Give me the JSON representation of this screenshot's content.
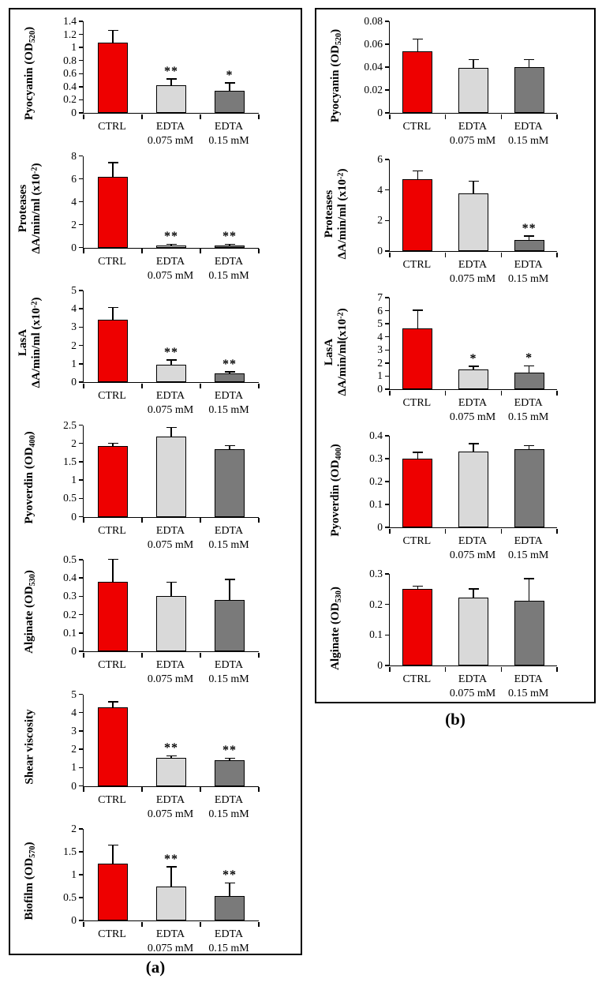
{
  "figure": {
    "panel_a_caption": "(a)",
    "panel_b_caption": "(b)"
  },
  "colors": {
    "ctrl_bar": "#ee0000",
    "edta_0075_bar": "#d9d9d9",
    "edta_015_bar": "#7a7a7a",
    "bar_border": "#000000",
    "axis": "#000000",
    "panel_border": "#000000"
  },
  "category_lines": [
    [
      "CTRL"
    ],
    [
      "EDTA",
      "0.075 mM"
    ],
    [
      "EDTA",
      "0.15 mM"
    ]
  ],
  "chart_data": [
    {
      "panel": "a",
      "name": "pyocyanin",
      "type": "bar",
      "ylabel": [
        "Pyocyanin (OD_{520})"
      ],
      "ylim": [
        0,
        1.4
      ],
      "yticks": [
        "0",
        "0.2",
        "0.4",
        "0.6",
        "0.8",
        "1",
        "1.2",
        "1.4"
      ],
      "categories": [
        "CTRL",
        "EDTA 0.075 mM",
        "EDTA 0.15 mM"
      ],
      "values": [
        1.07,
        0.42,
        0.34
      ],
      "errors": [
        0.18,
        0.09,
        0.11
      ],
      "significance": [
        "",
        "**",
        "*"
      ]
    },
    {
      "panel": "a",
      "name": "proteases",
      "type": "bar",
      "ylabel": [
        "Proteases",
        "ΔA/min/ml (x10^{-2})"
      ],
      "ylim": [
        0,
        8
      ],
      "yticks": [
        "0",
        "2",
        "4",
        "6",
        "8"
      ],
      "categories": [
        "CTRL",
        "EDTA 0.075 mM",
        "EDTA 0.15 mM"
      ],
      "values": [
        6.2,
        0.15,
        0.15
      ],
      "errors": [
        1.15,
        0.07,
        0.07
      ],
      "significance": [
        "",
        "**",
        "**"
      ]
    },
    {
      "panel": "a",
      "name": "lasa",
      "type": "bar",
      "ylabel": [
        "LasA",
        "ΔA/min/ml (x10^{-2})"
      ],
      "ylim": [
        0,
        5
      ],
      "yticks": [
        "0",
        "1",
        "2",
        "3",
        "4",
        "5"
      ],
      "categories": [
        "CTRL",
        "EDTA 0.075 mM",
        "EDTA 0.15 mM"
      ],
      "values": [
        3.4,
        0.95,
        0.47
      ],
      "errors": [
        0.65,
        0.23,
        0.06
      ],
      "significance": [
        "",
        "**",
        "**"
      ]
    },
    {
      "panel": "a",
      "name": "pyoverdin",
      "type": "bar",
      "ylabel": [
        "Pyoverdin (OD_{400})"
      ],
      "ylim": [
        0,
        2.5
      ],
      "yticks": [
        "0",
        "0.5",
        "1",
        "1.5",
        "2",
        "2.5"
      ],
      "categories": [
        "CTRL",
        "EDTA 0.075 mM",
        "EDTA 0.15 mM"
      ],
      "values": [
        1.93,
        2.18,
        1.84
      ],
      "errors": [
        0.06,
        0.24,
        0.08
      ],
      "significance": [
        "",
        "",
        ""
      ]
    },
    {
      "panel": "a",
      "name": "alginate",
      "type": "bar",
      "ylabel": [
        "Alginate (OD_{530})"
      ],
      "ylim": [
        0,
        0.5
      ],
      "yticks": [
        "0",
        "0.1",
        "0.2",
        "0.3",
        "0.4",
        "0.5"
      ],
      "categories": [
        "CTRL",
        "EDTA 0.075 mM",
        "EDTA 0.15 mM"
      ],
      "values": [
        0.38,
        0.3,
        0.28
      ],
      "errors": [
        0.12,
        0.075,
        0.11
      ],
      "significance": [
        "",
        "",
        ""
      ]
    },
    {
      "panel": "a",
      "name": "shear-viscosity",
      "type": "bar",
      "ylabel": [
        "Shear viscosity"
      ],
      "ylim": [
        0,
        5
      ],
      "yticks": [
        "0",
        "1",
        "2",
        "3",
        "4",
        "5"
      ],
      "categories": [
        "CTRL",
        "EDTA 0.075 mM",
        "EDTA 0.15 mM"
      ],
      "values": [
        4.27,
        1.55,
        1.38
      ],
      "errors": [
        0.28,
        0.05,
        0.1
      ],
      "significance": [
        "",
        "**",
        "**"
      ]
    },
    {
      "panel": "a",
      "name": "biofilm",
      "type": "bar",
      "ylabel": [
        "Biofilm (OD_{570})"
      ],
      "ylim": [
        0,
        2
      ],
      "yticks": [
        "0",
        "0.5",
        "1",
        "1.5",
        "2"
      ],
      "categories": [
        "CTRL",
        "EDTA 0.075 mM",
        "EDTA 0.15 mM"
      ],
      "values": [
        1.25,
        0.75,
        0.53
      ],
      "errors": [
        0.38,
        0.41,
        0.28
      ],
      "significance": [
        "",
        "**",
        "**"
      ]
    },
    {
      "panel": "b",
      "name": "pyocyanin",
      "type": "bar",
      "ylabel": [
        "Pyocyanin (OD_{520})"
      ],
      "ylim": [
        0,
        0.08
      ],
      "yticks": [
        "0",
        "0.02",
        "0.04",
        "0.06",
        "0.08"
      ],
      "categories": [
        "CTRL",
        "EDTA 0.075 mM",
        "EDTA 0.15 mM"
      ],
      "values": [
        0.054,
        0.039,
        0.04
      ],
      "errors": [
        0.01,
        0.007,
        0.006
      ],
      "significance": [
        "",
        "",
        ""
      ]
    },
    {
      "panel": "b",
      "name": "proteases",
      "type": "bar",
      "ylabel": [
        "Proteases",
        "ΔA/min/ml (x10^{-2})"
      ],
      "ylim": [
        0,
        6
      ],
      "yticks": [
        "0",
        "2",
        "4",
        "6"
      ],
      "categories": [
        "CTRL",
        "EDTA 0.075 mM",
        "EDTA 0.15 mM"
      ],
      "values": [
        4.7,
        3.8,
        0.7
      ],
      "errors": [
        0.5,
        0.75,
        0.25
      ],
      "significance": [
        "",
        "",
        "**"
      ]
    },
    {
      "panel": "b",
      "name": "lasa",
      "type": "bar",
      "ylabel": [
        "LasA",
        "ΔA/min/ml(x10^{-2})"
      ],
      "ylim": [
        0,
        7
      ],
      "yticks": [
        "0",
        "1",
        "2",
        "3",
        "4",
        "5",
        "6",
        "7"
      ],
      "categories": [
        "CTRL",
        "EDTA 0.075 mM",
        "EDTA 0.15 mM"
      ],
      "values": [
        4.65,
        1.5,
        1.25
      ],
      "errors": [
        1.35,
        0.2,
        0.5
      ],
      "significance": [
        "",
        "*",
        "*"
      ]
    },
    {
      "panel": "b",
      "name": "pyoverdin",
      "type": "bar",
      "ylabel": [
        "Pyoverdin (OD_{400})"
      ],
      "ylim": [
        0,
        0.4
      ],
      "yticks": [
        "0",
        "0.1",
        "0.2",
        "0.3",
        "0.4"
      ],
      "categories": [
        "CTRL",
        "EDTA 0.075 mM",
        "EDTA 0.15 mM"
      ],
      "values": [
        0.3,
        0.33,
        0.34
      ],
      "errors": [
        0.025,
        0.033,
        0.015
      ],
      "significance": [
        "",
        "",
        ""
      ]
    },
    {
      "panel": "b",
      "name": "alginate",
      "type": "bar",
      "ylabel": [
        "Alginate (OD_{530})"
      ],
      "ylim": [
        0,
        0.3
      ],
      "yticks": [
        "0",
        "0.1",
        "0.2",
        "0.3"
      ],
      "categories": [
        "CTRL",
        "EDTA 0.075 mM",
        "EDTA 0.15 mM"
      ],
      "values": [
        0.252,
        0.222,
        0.212
      ],
      "errors": [
        0.006,
        0.027,
        0.07
      ],
      "significance": [
        "",
        "",
        ""
      ]
    }
  ]
}
